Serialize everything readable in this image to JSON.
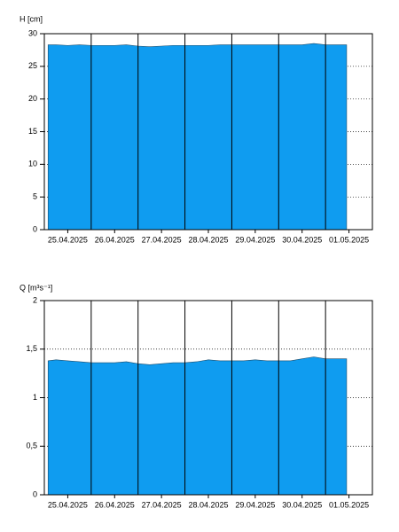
{
  "chart_data": [
    {
      "type": "area",
      "ylabel": "H [cm]",
      "color": "#0f9cf0",
      "x": [
        0.08,
        0.25,
        0.5,
        0.75,
        1.0,
        1.25,
        1.5,
        1.75,
        2.0,
        2.25,
        2.5,
        2.75,
        3.0,
        3.25,
        3.5,
        3.75,
        4.0,
        4.25,
        4.5,
        4.75,
        5.0,
        5.25,
        5.5,
        5.75,
        6.0,
        6.25,
        6.45
      ],
      "values": [
        28.3,
        28.3,
        28.2,
        28.3,
        28.2,
        28.2,
        28.2,
        28.3,
        28.1,
        28.0,
        28.1,
        28.2,
        28.2,
        28.2,
        28.2,
        28.3,
        28.3,
        28.3,
        28.3,
        28.3,
        28.3,
        28.3,
        28.3,
        28.5,
        28.3,
        28.3,
        28.3
      ],
      "xlim": [
        0,
        7
      ],
      "ylim": [
        0,
        30
      ],
      "yticks": [
        0,
        5,
        10,
        15,
        20,
        25,
        30
      ],
      "xticks": [
        {
          "value": 0.5,
          "label": "25.04.2025"
        },
        {
          "value": 1.5,
          "label": "26.04.2025"
        },
        {
          "value": 2.5,
          "label": "27.04.2025"
        },
        {
          "value": 3.5,
          "label": "28.04.2025"
        },
        {
          "value": 4.5,
          "label": "29.04.2025"
        },
        {
          "value": 5.5,
          "label": "30.04.2025"
        },
        {
          "value": 6.5,
          "label": "01.05.2025"
        }
      ],
      "xgrid": [
        1,
        2,
        3,
        4,
        5,
        6
      ],
      "grid": true
    },
    {
      "type": "area",
      "ylabel": "Q [m³s⁻¹]",
      "color": "#0f9cf0",
      "x": [
        0.08,
        0.25,
        0.5,
        0.75,
        1.0,
        1.25,
        1.5,
        1.75,
        2.0,
        2.25,
        2.5,
        2.75,
        3.0,
        3.25,
        3.5,
        3.75,
        4.0,
        4.25,
        4.5,
        4.75,
        5.0,
        5.25,
        5.5,
        5.75,
        6.0,
        6.25,
        6.45
      ],
      "values": [
        1.38,
        1.39,
        1.38,
        1.37,
        1.36,
        1.36,
        1.36,
        1.37,
        1.35,
        1.34,
        1.35,
        1.36,
        1.36,
        1.37,
        1.39,
        1.38,
        1.38,
        1.38,
        1.39,
        1.38,
        1.38,
        1.38,
        1.4,
        1.42,
        1.4,
        1.4,
        1.4
      ],
      "xlim": [
        0,
        7
      ],
      "ylim": [
        0,
        2
      ],
      "yticks": [
        0,
        {
          "value": 0.5,
          "label": "0,5"
        },
        1,
        {
          "value": 1.5,
          "label": "1,5"
        },
        2
      ],
      "xticks": [
        {
          "value": 0.5,
          "label": "25.04.2025"
        },
        {
          "value": 1.5,
          "label": "26.04.2025"
        },
        {
          "value": 2.5,
          "label": "27.04.2025"
        },
        {
          "value": 3.5,
          "label": "28.04.2025"
        },
        {
          "value": 4.5,
          "label": "29.04.2025"
        },
        {
          "value": 5.5,
          "label": "30.04.2025"
        },
        {
          "value": 6.5,
          "label": "01.05.2025"
        }
      ],
      "xgrid": [
        1,
        2,
        3,
        4,
        5,
        6
      ],
      "grid": true
    }
  ]
}
